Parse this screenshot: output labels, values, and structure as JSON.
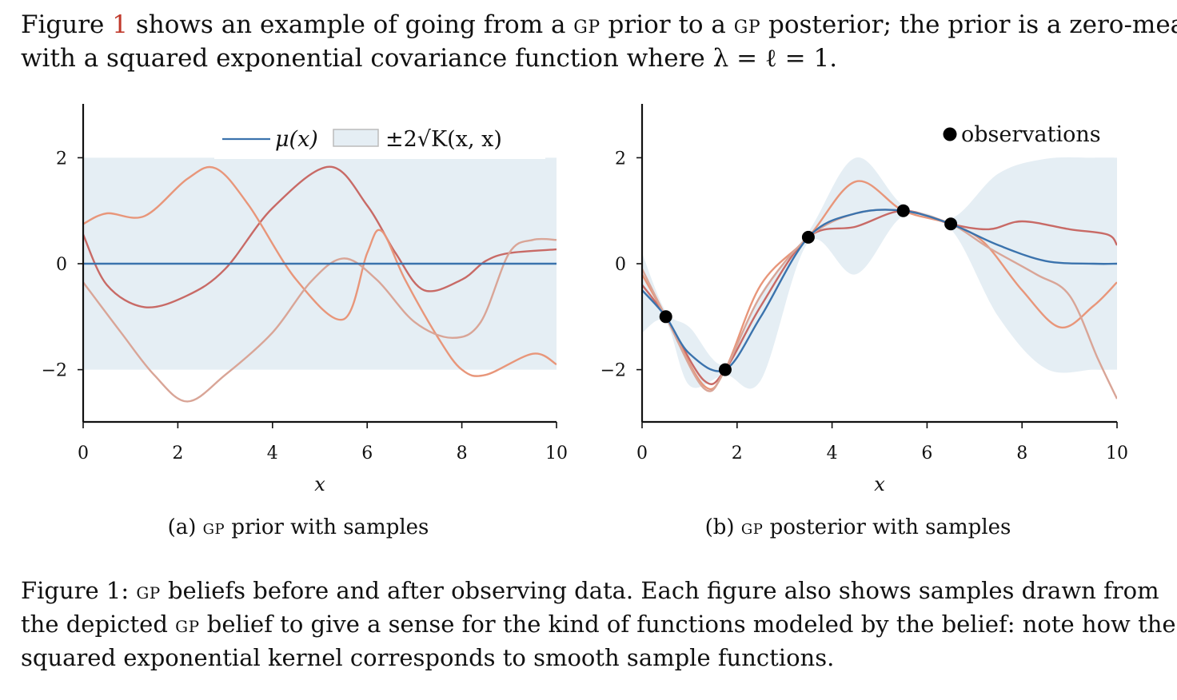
{
  "intro": {
    "line1_a": "Figure ",
    "line1_ref": "1",
    "line1_b": " shows an example of going from a ",
    "gp": "gp",
    "line1_c": " prior to a ",
    "line1_d": " posterior; the prior is a zero-mean ",
    "line2": "with a squared exponential covariance function where λ = ℓ = 1."
  },
  "subcaptions": {
    "a_prefix": "(a) ",
    "a_suffix": " prior with samples",
    "b_prefix": "(b) ",
    "b_suffix": " posterior with samples"
  },
  "figure_caption": {
    "label": "Figure 1: ",
    "line1_rest": " beliefs before and after observing data. Each figure also shows samples drawn from",
    "line2_a": "the depicted ",
    "line2_b": " belief to give a sense for the kind of functions modeled by the belief: note how the",
    "line3": "squared exponential kernel corresponds to smooth sample functions."
  },
  "colors": {
    "mean": "#3b73ad",
    "band": "#e5eef4",
    "sample1": "#c86a66",
    "sample2": "#e8967a",
    "sample3": "#d9a597",
    "obs": "#000000"
  },
  "chart_data": [
    {
      "type": "line",
      "xlabel": "x",
      "ylabel": "",
      "xlim": [
        0,
        10
      ],
      "ylim": [
        -3,
        3
      ],
      "xticks": [
        "0",
        "2",
        "4",
        "6",
        "8",
        "10"
      ],
      "yticks": [
        "−2",
        "0",
        "2"
      ],
      "legend": {
        "mean": "μ(x)",
        "band": "±2√K(x, x)",
        "placement": "top-center"
      },
      "mean": {
        "x": [
          0,
          10
        ],
        "y": [
          0,
          0
        ]
      },
      "band": {
        "x": [
          0,
          10
        ],
        "upper": [
          2,
          2
        ],
        "lower": [
          -2,
          -2
        ]
      },
      "samples": [
        {
          "color_key": "sample1",
          "x": [
            0,
            0.5,
            1.3,
            2.2,
            3,
            4,
            5.2,
            6,
            6.6,
            7.2,
            8,
            8.5,
            9,
            10
          ],
          "y": [
            0.55,
            -0.4,
            -0.82,
            -0.6,
            -0.1,
            1.05,
            1.83,
            1.1,
            0.2,
            -0.5,
            -0.3,
            0.05,
            0.2,
            0.27
          ]
        },
        {
          "color_key": "sample2",
          "x": [
            0,
            0.5,
            1.3,
            2.2,
            2.8,
            3.5,
            4.5,
            5.5,
            6,
            6.3,
            6.8,
            7.5,
            8,
            8.5,
            9.5,
            10
          ],
          "y": [
            0.75,
            0.95,
            0.9,
            1.6,
            1.8,
            1.1,
            -0.3,
            -1.05,
            0.2,
            0.62,
            -0.3,
            -1.4,
            -2.0,
            -2.1,
            -1.7,
            -1.9
          ]
        },
        {
          "color_key": "sample3",
          "x": [
            0,
            0.8,
            1.5,
            2.2,
            3,
            4,
            4.8,
            5.5,
            6.2,
            7,
            7.8,
            8.4,
            9,
            9.5,
            10
          ],
          "y": [
            -0.35,
            -1.3,
            -2.1,
            -2.6,
            -2.1,
            -1.3,
            -0.35,
            0.1,
            -0.3,
            -1.1,
            -1.4,
            -1.1,
            0.2,
            0.45,
            0.45
          ]
        }
      ]
    },
    {
      "type": "line",
      "xlabel": "x",
      "ylabel": "",
      "xlim": [
        0,
        10
      ],
      "ylim": [
        -3,
        3
      ],
      "xticks": [
        "0",
        "2",
        "4",
        "6",
        "8",
        "10"
      ],
      "yticks": [
        "−2",
        "0",
        "2"
      ],
      "legend": {
        "observations": "observations",
        "placement": "top-right"
      },
      "observations": {
        "x": [
          0.5,
          1.75,
          3.5,
          5.5,
          6.5
        ],
        "y": [
          -1.0,
          -2.0,
          0.5,
          1.0,
          0.75
        ]
      },
      "mean": {
        "x": [
          0,
          0.5,
          1.0,
          1.75,
          2.5,
          3.5,
          4.5,
          5.5,
          6.5,
          7.5,
          8.5,
          9.5,
          10
        ],
        "y": [
          -0.5,
          -1.0,
          -1.7,
          -2.0,
          -1.0,
          0.5,
          0.95,
          1.0,
          0.75,
          0.35,
          0.05,
          0.0,
          0.0
        ]
      },
      "band": {
        "x": [
          0,
          0.5,
          1.0,
          1.75,
          2.5,
          3.5,
          4.5,
          5.5,
          6.5,
          7.5,
          8.5,
          9.5,
          10
        ],
        "upper": [
          0.2,
          -0.9,
          -1.2,
          -1.9,
          -0.55,
          0.6,
          2.0,
          1.1,
          0.85,
          1.7,
          1.98,
          2.0,
          2.0
        ],
        "lower": [
          -1.3,
          -1.1,
          -2.3,
          -2.1,
          -2.2,
          0.4,
          -0.2,
          0.9,
          0.65,
          -1.0,
          -1.98,
          -2.0,
          -2.0
        ]
      },
      "samples": [
        {
          "color_key": "sample1",
          "x": [
            0,
            0.5,
            1.3,
            1.75,
            2.5,
            3.5,
            4.5,
            5.5,
            6.5,
            7.3,
            8,
            9,
            9.8,
            10
          ],
          "y": [
            -0.4,
            -1.0,
            -2.2,
            -2.0,
            -0.8,
            0.5,
            0.7,
            1.0,
            0.75,
            0.65,
            0.8,
            0.65,
            0.55,
            0.35
          ]
        },
        {
          "color_key": "sample2",
          "x": [
            0,
            0.5,
            1.3,
            1.75,
            2.5,
            3.5,
            4.5,
            5.5,
            6.5,
            7.2,
            8,
            8.8,
            9.5,
            10
          ],
          "y": [
            -0.2,
            -1.0,
            -2.3,
            -2.0,
            -0.4,
            0.5,
            1.55,
            1.0,
            0.75,
            0.4,
            -0.5,
            -1.2,
            -0.8,
            -0.35
          ]
        },
        {
          "color_key": "sample3",
          "x": [
            0,
            0.5,
            1.3,
            1.75,
            2.5,
            3.5,
            4.5,
            5.5,
            6.5,
            7.3,
            8.3,
            9,
            9.6,
            10
          ],
          "y": [
            -0.1,
            -1.0,
            -2.35,
            -2.0,
            -0.6,
            0.5,
            0.95,
            1.0,
            0.75,
            0.3,
            -0.2,
            -0.6,
            -1.8,
            -2.55
          ]
        }
      ]
    }
  ]
}
